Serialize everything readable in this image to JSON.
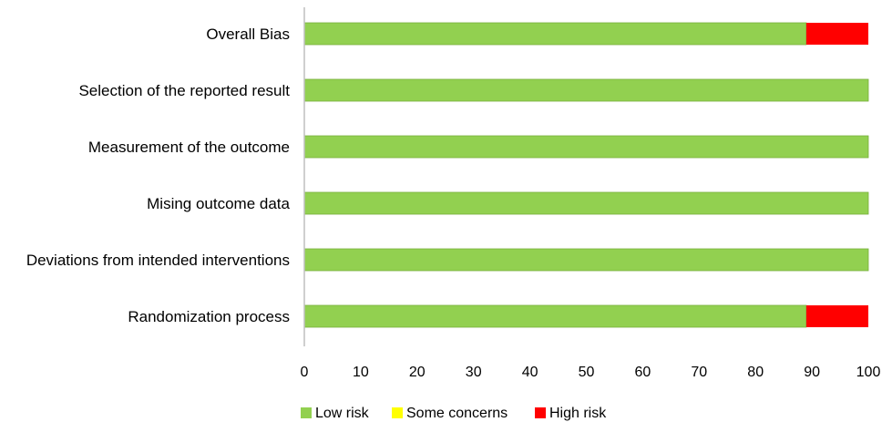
{
  "chart_data": {
    "type": "bar",
    "orientation": "horizontal",
    "stacked": true,
    "categories": [
      "Overall Bias",
      "Selection of the reported result",
      "Measurement of the outcome",
      "Mising outcome data",
      "Deviations from intended interventions",
      "Randomization process"
    ],
    "series": [
      {
        "name": "Low risk",
        "color": "#92d050",
        "values": [
          89,
          100,
          100,
          100,
          100,
          89
        ]
      },
      {
        "name": "Some concerns",
        "color": "#ffff00",
        "values": [
          0,
          0,
          0,
          0,
          0,
          0
        ]
      },
      {
        "name": "High risk",
        "color": "#ff0000",
        "values": [
          11,
          0,
          0,
          0,
          0,
          11
        ]
      }
    ],
    "xlim": [
      0,
      100
    ],
    "xticks": [
      "0",
      "10",
      "20",
      "30",
      "40",
      "50",
      "60",
      "70",
      "80",
      "90",
      "100"
    ],
    "grid": false,
    "legend_position": "bottom"
  }
}
